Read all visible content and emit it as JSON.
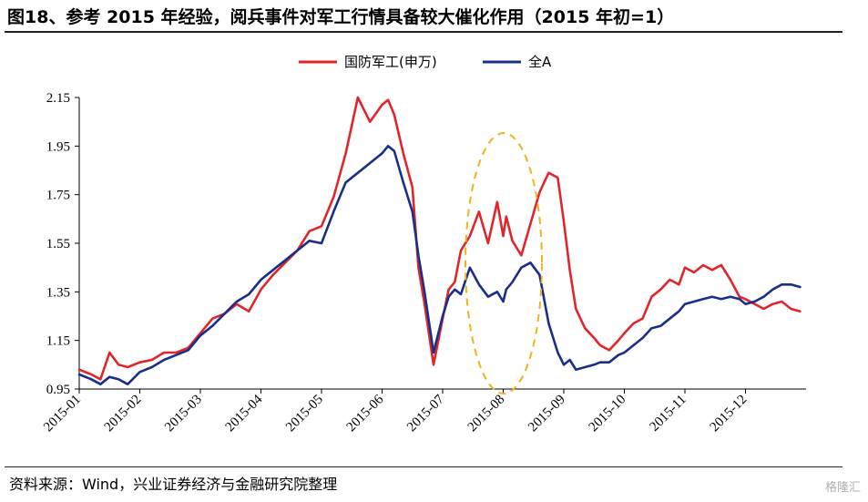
{
  "title": "图18、参考 2015 年经验，阅兵事件对军工行情具备较大催化作用（2015 年初=1）",
  "source": "资料来源：Wind，兴业证券经济与金融研究院整理",
  "watermark": "格隆汇",
  "chart_data": {
    "type": "line",
    "title": "",
    "xlabel": "",
    "ylabel": "",
    "ylim": [
      0.95,
      2.15
    ],
    "yticks": [
      "0.95",
      "1.15",
      "1.35",
      "1.55",
      "1.75",
      "1.95",
      "2.15"
    ],
    "xticks": [
      "2015-01",
      "2015-02",
      "2015-03",
      "2015-04",
      "2015-05",
      "2015-06",
      "2015-07",
      "2015-08",
      "2015-09",
      "2015-10",
      "2015-11",
      "2015-12"
    ],
    "legend_position": "top-center",
    "annotation": "dashed orange ellipse highlighting July–August 2015",
    "x_months": [
      0.0,
      0.2,
      0.35,
      0.5,
      0.65,
      0.8,
      1.0,
      1.2,
      1.4,
      1.6,
      1.8,
      2.0,
      2.2,
      2.4,
      2.6,
      2.8,
      3.0,
      3.2,
      3.4,
      3.6,
      3.8,
      4.0,
      4.2,
      4.4,
      4.6,
      4.8,
      5.0,
      5.1,
      5.2,
      5.35,
      5.5,
      5.6,
      5.7,
      5.85,
      6.0,
      6.1,
      6.2,
      6.3,
      6.45,
      6.6,
      6.75,
      6.9,
      7.0,
      7.05,
      7.15,
      7.3,
      7.45,
      7.6,
      7.75,
      7.9,
      8.0,
      8.1,
      8.2,
      8.35,
      8.5,
      8.6,
      8.75,
      8.9,
      9.0,
      9.15,
      9.3,
      9.45,
      9.6,
      9.75,
      9.9,
      10.0,
      10.15,
      10.3,
      10.45,
      10.6,
      10.75,
      10.9,
      11.0,
      11.15,
      11.3,
      11.45,
      11.6,
      11.75,
      11.9
    ],
    "series": [
      {
        "name": "国防军工(申万)",
        "color": "#e0262a",
        "values": [
          1.03,
          1.01,
          0.99,
          1.1,
          1.05,
          1.04,
          1.06,
          1.07,
          1.1,
          1.1,
          1.12,
          1.18,
          1.24,
          1.26,
          1.3,
          1.27,
          1.36,
          1.42,
          1.47,
          1.52,
          1.6,
          1.62,
          1.74,
          1.92,
          2.15,
          2.05,
          2.12,
          2.14,
          2.08,
          1.92,
          1.78,
          1.45,
          1.3,
          1.05,
          1.24,
          1.36,
          1.39,
          1.52,
          1.58,
          1.68,
          1.55,
          1.72,
          1.58,
          1.66,
          1.56,
          1.5,
          1.63,
          1.76,
          1.84,
          1.82,
          1.64,
          1.44,
          1.28,
          1.2,
          1.16,
          1.13,
          1.11,
          1.15,
          1.18,
          1.22,
          1.24,
          1.33,
          1.36,
          1.4,
          1.38,
          1.45,
          1.43,
          1.46,
          1.44,
          1.46,
          1.4,
          1.33,
          1.32,
          1.3,
          1.28,
          1.3,
          1.31,
          1.28,
          1.27
        ]
      },
      {
        "name": "全A",
        "color": "#1a2f8a",
        "values": [
          1.01,
          0.99,
          0.97,
          1.0,
          0.99,
          0.97,
          1.02,
          1.04,
          1.07,
          1.09,
          1.11,
          1.17,
          1.21,
          1.26,
          1.31,
          1.34,
          1.4,
          1.44,
          1.48,
          1.52,
          1.56,
          1.55,
          1.68,
          1.8,
          1.84,
          1.88,
          1.92,
          1.95,
          1.93,
          1.8,
          1.68,
          1.5,
          1.35,
          1.1,
          1.25,
          1.33,
          1.36,
          1.34,
          1.45,
          1.38,
          1.33,
          1.35,
          1.31,
          1.36,
          1.39,
          1.45,
          1.47,
          1.42,
          1.22,
          1.1,
          1.05,
          1.07,
          1.03,
          1.04,
          1.05,
          1.06,
          1.06,
          1.09,
          1.1,
          1.13,
          1.16,
          1.2,
          1.21,
          1.24,
          1.27,
          1.3,
          1.31,
          1.32,
          1.33,
          1.32,
          1.33,
          1.32,
          1.3,
          1.31,
          1.33,
          1.36,
          1.38,
          1.38,
          1.37
        ]
      }
    ]
  }
}
